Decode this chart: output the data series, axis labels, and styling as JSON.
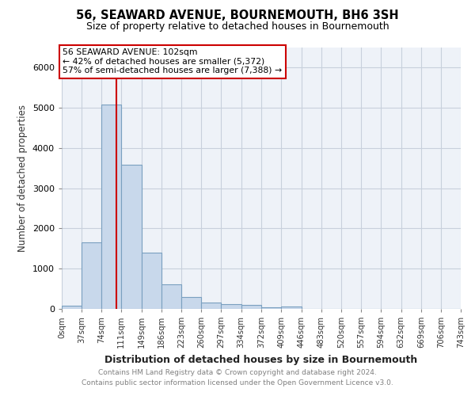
{
  "title": "56, SEAWARD AVENUE, BOURNEMOUTH, BH6 3SH",
  "subtitle": "Size of property relative to detached houses in Bournemouth",
  "xlabel": "Distribution of detached houses by size in Bournemouth",
  "ylabel": "Number of detached properties",
  "footer_line1": "Contains HM Land Registry data © Crown copyright and database right 2024.",
  "footer_line2": "Contains public sector information licensed under the Open Government Licence v3.0.",
  "bin_edges": [
    0,
    37,
    74,
    111,
    149,
    186,
    223,
    260,
    297,
    334,
    372,
    409,
    446,
    483,
    520,
    557,
    594,
    632,
    669,
    706,
    743
  ],
  "bar_heights": [
    75,
    1650,
    5080,
    3580,
    1400,
    610,
    300,
    155,
    115,
    90,
    45,
    65,
    0,
    0,
    0,
    0,
    0,
    0,
    0,
    0
  ],
  "bar_color": "#c8d8eb",
  "bar_edgecolor": "#7aa0c0",
  "property_sqm": 102,
  "vline_color": "#cc0000",
  "annotation_line1": "56 SEAWARD AVENUE: 102sqm",
  "annotation_line2": "← 42% of detached houses are smaller (5,372)",
  "annotation_line3": "57% of semi-detached houses are larger (7,388) →",
  "annotation_box_color": "#cc0000",
  "ylim": [
    0,
    6500
  ],
  "xlim": [
    0,
    743
  ],
  "grid_color": "#c8d0dc",
  "background_color": "#eef2f8",
  "tick_labels": [
    "0sqm",
    "37sqm",
    "74sqm",
    "111sqm",
    "149sqm",
    "186sqm",
    "223sqm",
    "260sqm",
    "297sqm",
    "334sqm",
    "372sqm",
    "409sqm",
    "446sqm",
    "483sqm",
    "520sqm",
    "557sqm",
    "594sqm",
    "632sqm",
    "669sqm",
    "706sqm",
    "743sqm"
  ]
}
